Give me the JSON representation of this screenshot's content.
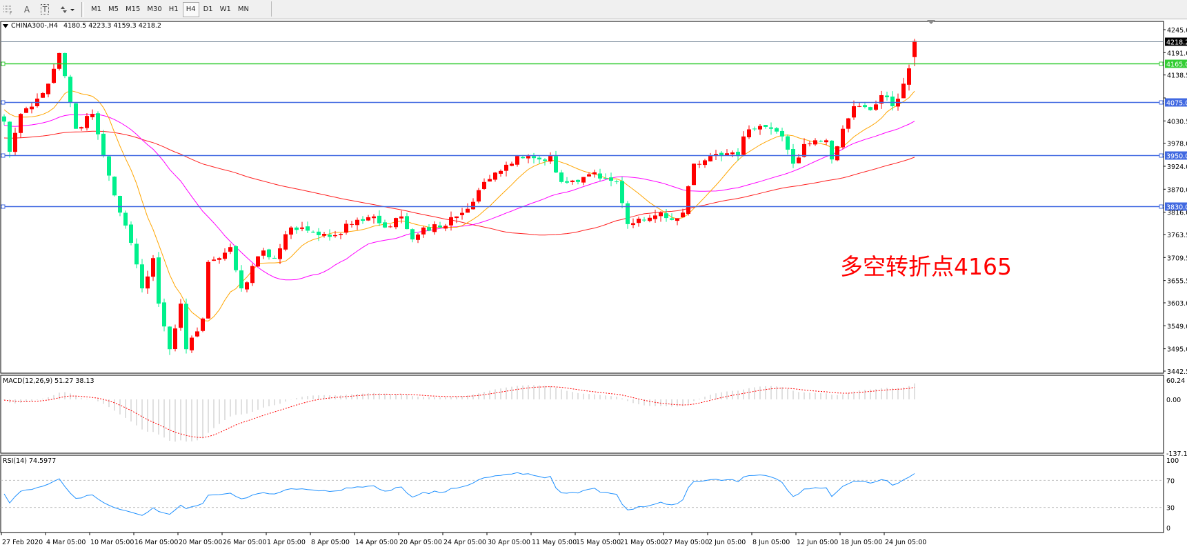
{
  "toolbar": {
    "icons": [
      "grid-icon",
      "text-icon",
      "text-label-icon",
      "arrows-icon"
    ],
    "text_tool": "A",
    "text_label_tool": "T",
    "timeframes": [
      "M1",
      "M5",
      "M15",
      "M30",
      "H1",
      "H4",
      "D1",
      "W1",
      "MN"
    ],
    "active_timeframe": "H4"
  },
  "chart": {
    "symbol": "CHINA300-,H4",
    "ohlc": "4180.5 4223.3 4159.3 4218.2",
    "annotation": "多空转折点4165",
    "colors": {
      "bull": "#ff0000",
      "bear": "#00f08c",
      "ma_fast": "#ffa500",
      "ma_mid": "#ff00ff",
      "ma_slow": "#ff2020",
      "support_line": "#4169e1",
      "pivot_line": "#32cd32",
      "bid_line": "#778899",
      "rsi": "#1e90ff",
      "macd_hist": "#c0c0c0",
      "macd_signal": "#ff0000"
    },
    "price_axis": [
      "4245.0",
      "4191.0",
      "4138.5",
      "4084.5",
      "4030.5",
      "3978.0",
      "3924.0",
      "3870.0",
      "3816.0",
      "3763.5",
      "3709.5",
      "3655.5",
      "3603.0",
      "3549.0",
      "3495.0",
      "3442.5"
    ],
    "horizontal_lines": [
      {
        "price": "4218.2",
        "kind": "bid"
      },
      {
        "price": "4165.0",
        "kind": "pivot"
      },
      {
        "price": "4075.0",
        "kind": "support"
      },
      {
        "price": "3950.0",
        "kind": "support"
      },
      {
        "price": "3830.0",
        "kind": "support"
      }
    ],
    "time_axis": [
      "27 Feb 2020",
      "4 Mar 05:00",
      "10 Mar 05:00",
      "16 Mar 05:00",
      "20 Mar 05:00",
      "26 Mar 05:00",
      "1 Apr 05:00",
      "8 Apr 05:00",
      "14 Apr 05:00",
      "20 Apr 05:00",
      "24 Apr 05:00",
      "30 Apr 05:00",
      "11 May 05:00",
      "15 May 05:00",
      "21 May 05:00",
      "27 May 05:00",
      "2 Jun 05:00",
      "8 Jun 05:00",
      "12 Jun 05:00",
      "18 Jun 05:00",
      "24 Jun 05:00"
    ],
    "close_path": [
      [
        0,
        4029
      ],
      [
        1,
        3958
      ],
      [
        3,
        4047
      ],
      [
        6,
        4083
      ],
      [
        8,
        4118
      ],
      [
        10,
        4190
      ],
      [
        11,
        4136
      ],
      [
        13,
        4012
      ],
      [
        16,
        4047
      ],
      [
        18,
        3948
      ],
      [
        21,
        3815
      ],
      [
        23,
        3744
      ],
      [
        25,
        3637
      ],
      [
        27,
        3708
      ],
      [
        28,
        3601
      ],
      [
        30,
        3494
      ],
      [
        32,
        3601
      ],
      [
        33,
        3494
      ],
      [
        36,
        3566
      ],
      [
        37,
        3699
      ],
      [
        39,
        3708
      ],
      [
        41,
        3734
      ],
      [
        43,
        3637
      ],
      [
        47,
        3726
      ],
      [
        49,
        3708
      ],
      [
        52,
        3780
      ],
      [
        54,
        3780
      ],
      [
        57,
        3762
      ],
      [
        60,
        3762
      ],
      [
        64,
        3798
      ],
      [
        67,
        3806
      ],
      [
        69,
        3780
      ],
      [
        72,
        3806
      ],
      [
        74,
        3752
      ],
      [
        76,
        3780
      ],
      [
        79,
        3780
      ],
      [
        82,
        3806
      ],
      [
        84,
        3824
      ],
      [
        87,
        3887
      ],
      [
        90,
        3913
      ],
      [
        93,
        3948
      ],
      [
        95,
        3948
      ],
      [
        97,
        3940
      ],
      [
        99,
        3948
      ],
      [
        101,
        3887
      ],
      [
        104,
        3887
      ],
      [
        106,
        3905
      ],
      [
        109,
        3895
      ],
      [
        111,
        3887
      ],
      [
        113,
        3788
      ],
      [
        116,
        3798
      ],
      [
        119,
        3815
      ],
      [
        121,
        3798
      ],
      [
        123,
        3815
      ],
      [
        125,
        3930
      ],
      [
        128,
        3948
      ],
      [
        130,
        3948
      ],
      [
        133,
        3948
      ],
      [
        134,
        3994
      ],
      [
        136,
        4012
      ],
      [
        139,
        4012
      ],
      [
        141,
        3994
      ],
      [
        143,
        3930
      ],
      [
        145,
        3976
      ],
      [
        147,
        3985
      ],
      [
        149,
        3985
      ],
      [
        150,
        3940
      ],
      [
        152,
        4012
      ],
      [
        154,
        4065
      ],
      [
        157,
        4056
      ],
      [
        159,
        4091
      ],
      [
        161,
        4065
      ],
      [
        163,
        4118
      ],
      [
        164,
        4154
      ],
      [
        165,
        4218.2
      ]
    ],
    "last_bar": {
      "open": 4180.5,
      "high": 4223.3,
      "low": 4159.3,
      "close": 4218.2
    }
  },
  "macd": {
    "label": "MACD(12,26,9) 51.27 38.13",
    "axis": [
      "60.24",
      "0.00",
      "-137.18"
    ]
  },
  "rsi": {
    "label": "RSI(14) 74.5977",
    "axis": [
      "100",
      "70",
      "30",
      "0"
    ],
    "levels": [
      70,
      30
    ]
  }
}
